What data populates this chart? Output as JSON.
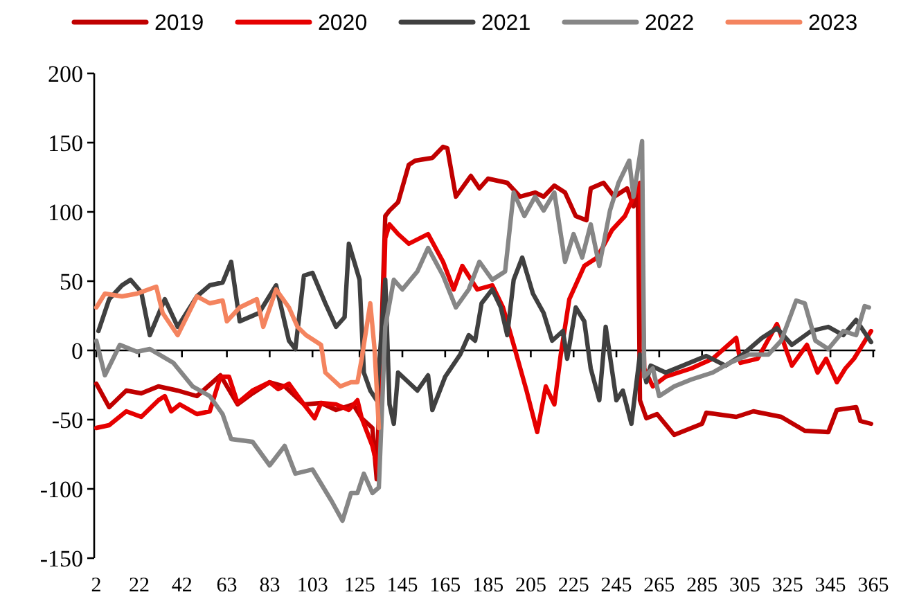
{
  "chart_data": {
    "type": "line",
    "legend": "top",
    "line_style": "solid",
    "xlim": [
      1,
      366
    ],
    "xticks": [
      2,
      22,
      42,
      63,
      83,
      103,
      125,
      145,
      165,
      185,
      205,
      225,
      245,
      265,
      285,
      305,
      325,
      345,
      365
    ],
    "ylim": [
      -150,
      200
    ],
    "yticks": [
      -150,
      -100,
      -50,
      0,
      50,
      100,
      150,
      200
    ],
    "series": [
      {
        "name": "2019",
        "color": "#c00000",
        "x": [
          2,
          8,
          16,
          23,
          31,
          40,
          49,
          60,
          68,
          75,
          83,
          90,
          99,
          107,
          114,
          122,
          126,
          131,
          133,
          137,
          139,
          143,
          148,
          151,
          159,
          164,
          166,
          170,
          177,
          181,
          185,
          194,
          200,
          207,
          211,
          216,
          221,
          226,
          231,
          233,
          239,
          244,
          250,
          253,
          255,
          256,
          259,
          264,
          272,
          285,
          287,
          301,
          309,
          322,
          333,
          344,
          348,
          357,
          359,
          364
        ],
        "values": [
          -24,
          -41,
          -29,
          -31,
          -26,
          -29,
          -33,
          -18,
          -39,
          -31,
          -23,
          -26,
          -39,
          -38,
          -43,
          -39,
          -49,
          -56,
          -93,
          97,
          101,
          107,
          134,
          137,
          139,
          147,
          146,
          111,
          126,
          117,
          124,
          121,
          111,
          114,
          111,
          119,
          114,
          97,
          94,
          117,
          121,
          111,
          117,
          104,
          114,
          -36,
          -49,
          -46,
          -61,
          -53,
          -45,
          -48,
          -44,
          -48,
          -58,
          -59,
          -43,
          -41,
          -51,
          -53
        ]
      },
      {
        "name": "2020",
        "color": "#e60000",
        "x": [
          2,
          8,
          16,
          23,
          31,
          34,
          37,
          41,
          49,
          55,
          60,
          64,
          68,
          75,
          83,
          87,
          92,
          99,
          104,
          107,
          114,
          120,
          124,
          126,
          131,
          134,
          137,
          139,
          143,
          148,
          157,
          164,
          169,
          173,
          180,
          187,
          192,
          197,
          203,
          208,
          212,
          216,
          219,
          223,
          230,
          236,
          243,
          249,
          256,
          258,
          262,
          268,
          280,
          290,
          301,
          303,
          311,
          320,
          327,
          334,
          339,
          343,
          348,
          352,
          356,
          364
        ],
        "values": [
          -56,
          -54,
          -44,
          -48,
          -36,
          -33,
          -44,
          -39,
          -46,
          -44,
          -19,
          -19,
          -38,
          -29,
          -23,
          -28,
          -24,
          -39,
          -49,
          -38,
          -39,
          -43,
          -36,
          -49,
          -69,
          -89,
          81,
          91,
          84,
          77,
          84,
          64,
          44,
          61,
          44,
          47,
          31,
          4,
          -29,
          -59,
          -26,
          -39,
          -3,
          37,
          61,
          67,
          87,
          97,
          121,
          -13,
          -26,
          -19,
          -13,
          -6,
          9,
          -9,
          -6,
          19,
          -11,
          4,
          -16,
          -6,
          -23,
          -13,
          -6,
          14
        ]
      },
      {
        "name": "2021",
        "color": "#404040",
        "x": [
          3,
          8,
          14,
          18,
          23,
          27,
          34,
          40,
          49,
          55,
          61,
          65,
          69,
          78,
          86,
          92,
          95,
          99,
          103,
          109,
          114,
          118,
          120,
          125,
          127,
          130,
          133,
          137,
          139,
          141,
          143,
          152,
          157,
          159,
          165,
          172,
          176,
          179,
          182,
          187,
          191,
          194,
          197,
          201,
          206,
          211,
          215,
          220,
          222,
          226,
          230,
          233,
          237,
          240,
          245,
          248,
          252,
          256,
          259,
          261,
          268,
          276,
          287,
          296,
          304,
          313,
          320,
          327,
          336,
          344,
          351,
          357,
          364
        ],
        "values": [
          14,
          37,
          47,
          51,
          42,
          11,
          37,
          17,
          39,
          47,
          49,
          64,
          21,
          27,
          47,
          7,
          1,
          54,
          56,
          34,
          17,
          24,
          77,
          51,
          -16,
          -29,
          -36,
          51,
          -39,
          -53,
          -16,
          -29,
          -18,
          -43,
          -19,
          -3,
          11,
          7,
          34,
          44,
          31,
          11,
          51,
          67,
          41,
          27,
          7,
          14,
          -6,
          31,
          21,
          -13,
          -36,
          17,
          -36,
          -29,
          -53,
          -3,
          -23,
          -11,
          -16,
          -11,
          -4,
          -11,
          -3,
          9,
          16,
          4,
          14,
          17,
          11,
          22,
          6
        ]
      },
      {
        "name": "2022",
        "color": "#868686",
        "x": [
          2,
          6,
          13,
          21,
          27,
          38,
          47,
          55,
          61,
          65,
          75,
          83,
          90,
          95,
          103,
          112,
          117,
          121,
          124,
          127,
          131,
          134,
          137,
          141,
          145,
          152,
          157,
          164,
          170,
          176,
          181,
          187,
          193,
          197,
          202,
          207,
          211,
          216,
          221,
          225,
          229,
          233,
          237,
          242,
          246,
          251,
          253,
          257,
          258,
          262,
          265,
          272,
          280,
          290,
          298,
          307,
          316,
          322,
          329,
          333,
          338,
          344,
          351,
          357,
          361,
          363
        ],
        "values": [
          7,
          -18,
          4,
          -1,
          1,
          -9,
          -26,
          -33,
          -46,
          -64,
          -66,
          -83,
          -69,
          -89,
          -86,
          -109,
          -123,
          -103,
          -103,
          -89,
          -103,
          -99,
          17,
          51,
          44,
          57,
          74,
          54,
          31,
          44,
          64,
          51,
          57,
          114,
          97,
          111,
          101,
          114,
          64,
          84,
          67,
          91,
          61,
          101,
          121,
          137,
          111,
          151,
          -19,
          -13,
          -33,
          -26,
          -21,
          -16,
          -9,
          -3,
          -3,
          7,
          36,
          34,
          7,
          1,
          14,
          11,
          32,
          31
        ]
      },
      {
        "name": "2023",
        "color": "#f4845f",
        "x": [
          2,
          6,
          14,
          21,
          30,
          33,
          40,
          49,
          55,
          61,
          63,
          69,
          77,
          80,
          86,
          92,
          96,
          100,
          107,
          109,
          116,
          121,
          124,
          126,
          130,
          132,
          134
        ],
        "values": [
          31,
          41,
          39,
          41,
          46,
          27,
          11,
          39,
          34,
          36,
          21,
          31,
          37,
          17,
          44,
          31,
          17,
          11,
          4,
          -16,
          -26,
          -23,
          -23,
          -6,
          34,
          1,
          -56
        ]
      }
    ]
  }
}
